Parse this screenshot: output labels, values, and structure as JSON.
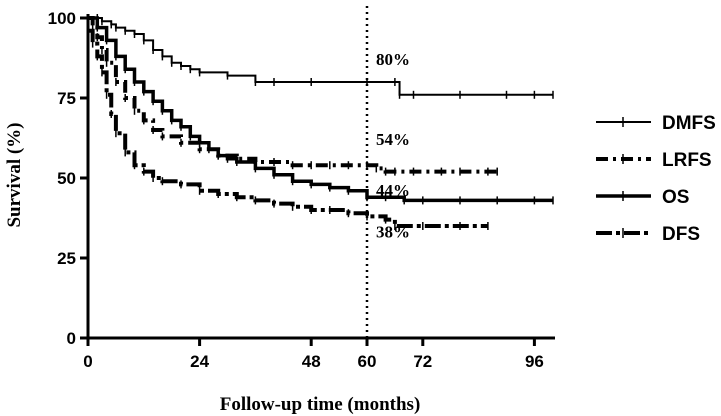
{
  "chart_data": {
    "type": "line",
    "title": "",
    "xlabel": "Follow-up time (months)",
    "ylabel": "Survival (%)",
    "xlim": [
      0,
      100
    ],
    "ylim": [
      0,
      100
    ],
    "x_ticks": [
      0,
      24,
      48,
      60,
      72,
      96
    ],
    "y_ticks": [
      0,
      25,
      50,
      75,
      100
    ],
    "reference_line_x": 60,
    "grid": false,
    "legend_position": "right",
    "annotations": [
      {
        "text": "80%",
        "x": 60,
        "y": 80
      },
      {
        "text": "54%",
        "x": 60,
        "y": 54
      },
      {
        "text": "44%",
        "x": 60,
        "y": 44
      },
      {
        "text": "38%",
        "x": 60,
        "y": 38
      }
    ],
    "series": [
      {
        "name": "DMFS",
        "style": "solid",
        "x": [
          0,
          2,
          3,
          5,
          6,
          8,
          10,
          12,
          14,
          16,
          18,
          20,
          22,
          24,
          30,
          36,
          40,
          48,
          60,
          66,
          67,
          70,
          80,
          90,
          96,
          100
        ],
        "y": [
          100,
          100,
          99,
          98,
          97,
          96,
          95,
          93,
          90,
          88,
          86,
          85,
          84,
          83,
          82,
          80,
          80,
          80,
          80,
          80,
          76,
          76,
          76,
          76,
          76,
          76
        ]
      },
      {
        "name": "LRFS",
        "style": "dash-dot",
        "x": [
          0,
          1,
          2,
          3,
          4,
          6,
          8,
          10,
          12,
          14,
          16,
          20,
          24,
          28,
          32,
          36,
          40,
          44,
          48,
          52,
          56,
          60,
          62,
          64,
          66,
          70,
          76,
          80,
          86,
          88
        ],
        "y": [
          100,
          97,
          94,
          90,
          86,
          80,
          75,
          71,
          68,
          65,
          63,
          61,
          59,
          57,
          56,
          55,
          55,
          54,
          54,
          54,
          54,
          54,
          53,
          52,
          52,
          52,
          52,
          52,
          52,
          52
        ]
      },
      {
        "name": "OS",
        "style": "solid-thick",
        "x": [
          0,
          2,
          4,
          6,
          8,
          10,
          12,
          14,
          16,
          18,
          20,
          22,
          24,
          26,
          28,
          30,
          32,
          36,
          40,
          44,
          48,
          52,
          56,
          60,
          64,
          68,
          72,
          80,
          88,
          96,
          100
        ],
        "y": [
          100,
          97,
          93,
          88,
          84,
          80,
          77,
          74,
          71,
          68,
          66,
          63,
          61,
          59,
          57,
          56,
          55,
          53,
          51,
          49,
          48,
          47,
          46,
          44,
          44,
          43,
          43,
          43,
          43,
          43,
          43
        ]
      },
      {
        "name": "DFS",
        "style": "dash-dot-long",
        "x": [
          0,
          1,
          2,
          3,
          4,
          5,
          6,
          8,
          10,
          12,
          14,
          16,
          20,
          24,
          28,
          32,
          36,
          40,
          44,
          48,
          52,
          56,
          60,
          64,
          66,
          72,
          80,
          86
        ],
        "y": [
          96,
          92,
          88,
          83,
          76,
          70,
          64,
          58,
          54,
          52,
          50,
          49,
          48,
          46,
          45,
          44,
          43,
          42,
          41,
          40,
          40,
          39,
          38,
          37,
          35,
          35,
          35,
          35
        ]
      }
    ]
  }
}
